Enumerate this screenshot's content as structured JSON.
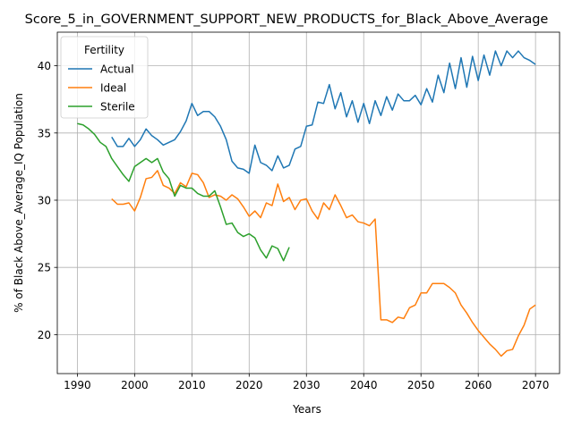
{
  "chart_data": {
    "type": "line",
    "title": "Score_5_in_GOVERNMENT_SUPPORT_NEW_PRODUCTS_for_Black_Above_Average",
    "xlabel": "Years",
    "ylabel": "% of Black Above_Average_IQ Population",
    "xlim": [
      1986.5,
      2074.2
    ],
    "ylim": [
      17.1,
      42.5
    ],
    "xticks": [
      1990,
      2000,
      2010,
      2020,
      2030,
      2040,
      2050,
      2060,
      2070
    ],
    "yticks": [
      20,
      25,
      30,
      35,
      40
    ],
    "grid": true,
    "legend": {
      "title": "Fertility",
      "placement": "top-left"
    },
    "series": [
      {
        "name": "Actual",
        "color": "#1f77b4",
        "x": [
          1996,
          1997,
          1998,
          1999,
          2000,
          2001,
          2002,
          2003,
          2004,
          2005,
          2006,
          2007,
          2008,
          2009,
          2010,
          2011,
          2012,
          2013,
          2014,
          2015,
          2016,
          2017,
          2018,
          2019,
          2020,
          2021,
          2022,
          2023,
          2024,
          2025,
          2026,
          2027,
          2028,
          2029,
          2030,
          2031,
          2032,
          2033,
          2034,
          2035,
          2036,
          2037,
          2038,
          2039,
          2040,
          2041,
          2042,
          2043,
          2044,
          2045,
          2046,
          2047,
          2048,
          2049,
          2050,
          2051,
          2052,
          2053,
          2054,
          2055,
          2056,
          2057,
          2058,
          2059,
          2060,
          2061,
          2062,
          2063,
          2064,
          2065,
          2066,
          2067,
          2068,
          2069,
          2070
        ],
        "values": [
          34.7,
          34.0,
          34.0,
          34.6,
          34.0,
          34.5,
          35.3,
          34.8,
          34.5,
          34.1,
          34.3,
          34.5,
          35.1,
          35.9,
          37.2,
          36.3,
          36.6,
          36.6,
          36.2,
          35.5,
          34.5,
          32.9,
          32.4,
          32.3,
          32.0,
          34.1,
          32.8,
          32.6,
          32.2,
          33.3,
          32.4,
          32.6,
          33.8,
          34.0,
          35.5,
          35.6,
          37.3,
          37.2,
          38.6,
          36.8,
          38.0,
          36.2,
          37.4,
          35.8,
          37.2,
          35.7,
          37.4,
          36.3,
          37.7,
          36.7,
          37.9,
          37.4,
          37.4,
          37.8,
          37.1,
          38.3,
          37.3,
          39.3,
          38.0,
          40.2,
          38.3,
          40.6,
          38.4,
          40.7,
          38.9,
          40.8,
          39.3,
          41.1,
          40.0,
          41.1,
          40.6,
          41.1,
          40.6,
          40.4,
          40.1
        ]
      },
      {
        "name": "Ideal",
        "color": "#ff7f0e",
        "x": [
          1996,
          1997,
          1998,
          1999,
          2000,
          2001,
          2002,
          2003,
          2004,
          2005,
          2006,
          2007,
          2008,
          2009,
          2010,
          2011,
          2012,
          2013,
          2014,
          2015,
          2016,
          2017,
          2018,
          2019,
          2020,
          2021,
          2022,
          2023,
          2024,
          2025,
          2026,
          2027,
          2028,
          2029,
          2030,
          2031,
          2032,
          2033,
          2034,
          2035,
          2036,
          2037,
          2038,
          2039,
          2040,
          2041,
          2042,
          2043,
          2044,
          2045,
          2046,
          2047,
          2048,
          2049,
          2050,
          2051,
          2052,
          2053,
          2054,
          2055,
          2056,
          2057,
          2058,
          2059,
          2060,
          2061,
          2062,
          2063,
          2064,
          2065,
          2066,
          2067,
          2068,
          2069,
          2070
        ],
        "values": [
          30.1,
          29.7,
          29.7,
          29.8,
          29.2,
          30.2,
          31.6,
          31.7,
          32.2,
          31.1,
          30.9,
          30.5,
          31.3,
          31.0,
          32.0,
          31.9,
          31.3,
          30.2,
          30.4,
          30.3,
          30.0,
          30.4,
          30.1,
          29.5,
          28.8,
          29.2,
          28.7,
          29.8,
          29.6,
          31.2,
          29.9,
          30.2,
          29.3,
          30.0,
          30.1,
          29.2,
          28.6,
          29.8,
          29.3,
          30.4,
          29.6,
          28.7,
          28.9,
          28.4,
          28.3,
          28.1,
          28.6,
          21.1,
          21.1,
          20.9,
          21.3,
          21.2,
          22.0,
          22.2,
          23.1,
          23.1,
          23.8,
          23.8,
          23.8,
          23.5,
          23.1,
          22.2,
          21.6,
          20.9,
          20.3,
          19.8,
          19.3,
          18.9,
          18.4,
          18.8,
          18.9,
          19.9,
          20.7,
          21.9,
          22.2
        ]
      },
      {
        "name": "Sterile",
        "color": "#2ca02c",
        "x": [
          1990,
          1991,
          1992,
          1993,
          1994,
          1995,
          1996,
          1997,
          1998,
          1999,
          2000,
          2001,
          2002,
          2003,
          2004,
          2005,
          2006,
          2007,
          2008,
          2009,
          2010,
          2011,
          2012,
          2013,
          2014,
          2015,
          2016,
          2017,
          2018,
          2019,
          2020,
          2021,
          2022,
          2023,
          2024,
          2025,
          2026,
          2027
        ],
        "values": [
          35.7,
          35.6,
          35.3,
          34.9,
          34.3,
          34.0,
          33.1,
          32.5,
          31.9,
          31.4,
          32.5,
          32.8,
          33.1,
          32.8,
          33.1,
          32.1,
          31.6,
          30.3,
          31.1,
          30.9,
          30.9,
          30.5,
          30.3,
          30.3,
          30.7,
          29.5,
          28.2,
          28.3,
          27.6,
          27.3,
          27.5,
          27.2,
          26.3,
          25.7,
          26.6,
          26.4,
          25.5,
          26.5
        ]
      }
    ]
  }
}
